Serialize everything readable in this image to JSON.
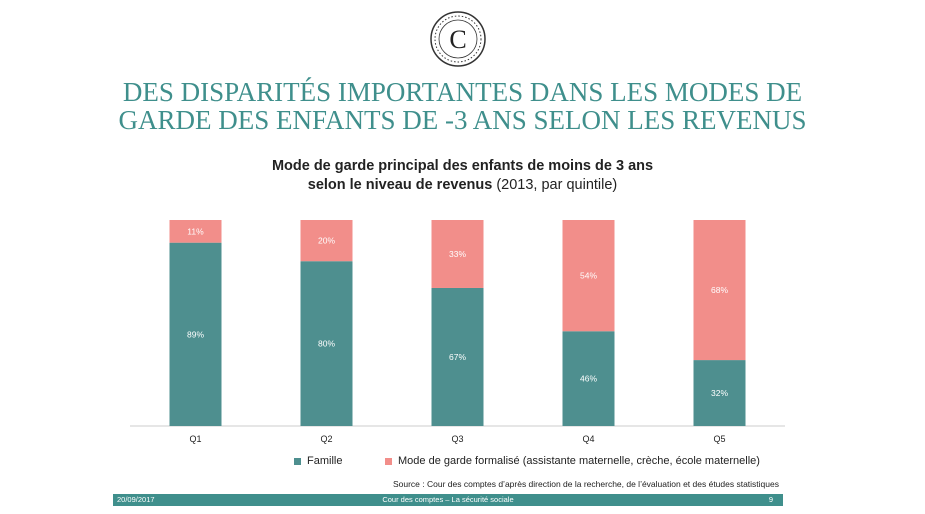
{
  "slide": {
    "title_line1": "DES DISPARITÉS IMPORTANTES DANS LES MODES DE",
    "title_line2": "GARDE DES ENFANTS DE -3 ANS SELON LES REVENUS",
    "logo_letter": "C"
  },
  "chart_header": {
    "title_bold_1": "Mode de garde principal des enfants de moins de 3 ans",
    "title_bold_2": "selon le niveau de revenus",
    "title_normal_2": " (2013, par quintile)"
  },
  "chart_data": {
    "type": "bar",
    "stacked": true,
    "percent_stacked": true,
    "categories": [
      "Q1",
      "Q2",
      "Q3",
      "Q4",
      "Q5"
    ],
    "series": [
      {
        "name": "Famille",
        "values": [
          89,
          80,
          67,
          46,
          32
        ],
        "labels": [
          "89%",
          "80%",
          "67%",
          "46%",
          "32%"
        ],
        "color": "#4e8f8f"
      },
      {
        "name": "Mode de garde formalisé (assistante maternelle, crèche, école maternelle)",
        "values": [
          11,
          20,
          33,
          54,
          68
        ],
        "labels": [
          "11%",
          "20%",
          "33%",
          "54%",
          "68%"
        ],
        "color": "#f28e8a"
      }
    ],
    "ylim": [
      0,
      100
    ],
    "grid": false,
    "legend_position": "bottom"
  },
  "source": "Source : Cour des comptes d’après direction de la recherche, de l’évaluation et des études statistiques",
  "footer": {
    "date": "20/09/2017",
    "center": "Cour des comptes – La sécurité sociale",
    "page": "9"
  },
  "colors": {
    "accent": "#3f8f8c",
    "famille": "#4e8f8f",
    "formalise": "#f28e8a"
  }
}
